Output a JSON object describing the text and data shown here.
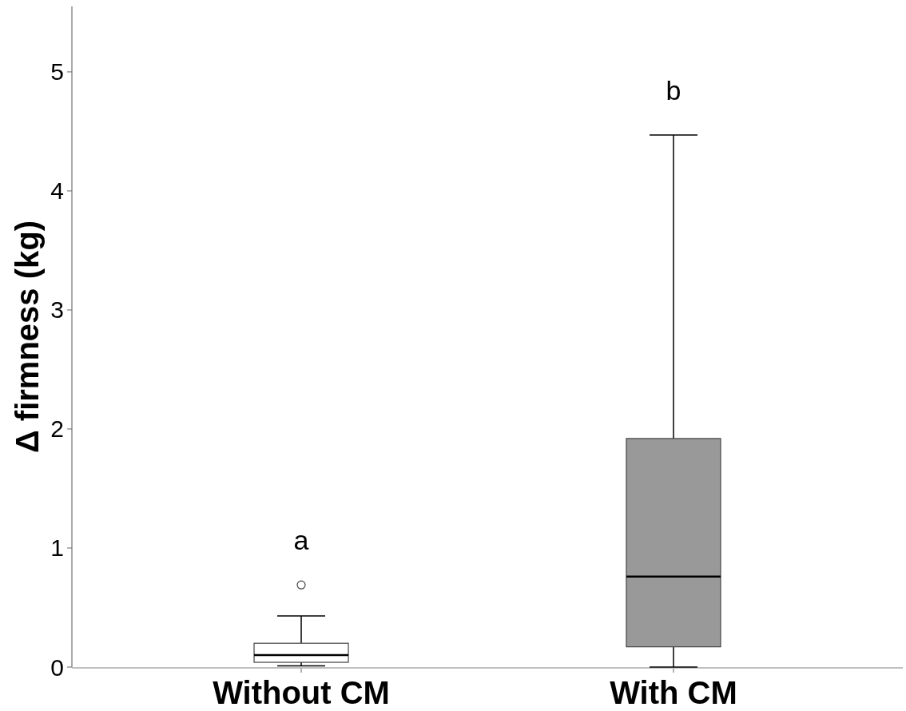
{
  "chart_data": {
    "type": "box",
    "ylabel": "Δ firmness (kg)",
    "categories": [
      "Without CM",
      "With CM"
    ],
    "boxes": [
      {
        "low": 0.01,
        "q1": 0.04,
        "median": 0.1,
        "q3": 0.2,
        "high": 0.43,
        "outliers": [
          0.69
        ]
      },
      {
        "low": 0,
        "q1": 0.17,
        "median": 0.76,
        "q3": 1.92,
        "high": 4.47
      }
    ],
    "colors": [
      "#ffffff",
      "#999999"
    ],
    "ylim": [
      0,
      5.55
    ],
    "yticks": [
      0,
      1,
      2,
      3,
      4,
      5
    ],
    "grid": false,
    "annotations": [
      "a",
      "b"
    ]
  }
}
